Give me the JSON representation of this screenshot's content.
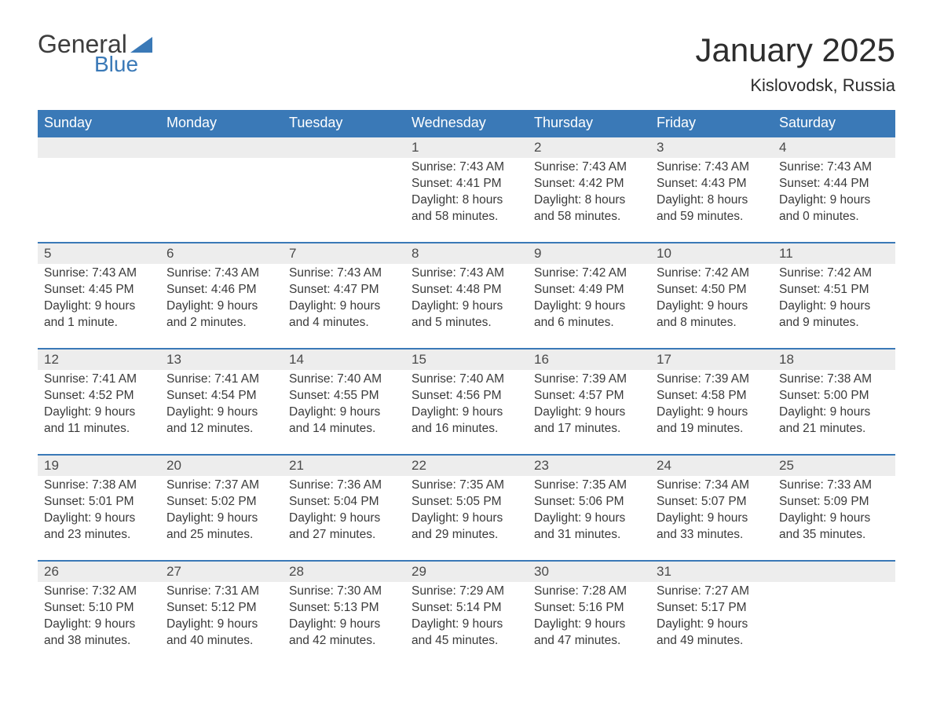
{
  "logo": {
    "general": "General",
    "blue": "Blue"
  },
  "header": {
    "title": "January 2025",
    "location": "Kislovodsk, Russia"
  },
  "colors": {
    "brand_blue": "#3a79b7",
    "header_bg": "#3a79b7",
    "header_text": "#ffffff",
    "daynum_bg": "#ededed",
    "daynum_border": "#3a79b7",
    "text": "#3a3a3a",
    "background": "#ffffff"
  },
  "days_of_week": [
    "Sunday",
    "Monday",
    "Tuesday",
    "Wednesday",
    "Thursday",
    "Friday",
    "Saturday"
  ],
  "weeks": [
    [
      null,
      null,
      null,
      {
        "n": "1",
        "sr": "Sunrise: 7:43 AM",
        "ss": "Sunset: 4:41 PM",
        "d1": "Daylight: 8 hours",
        "d2": "and 58 minutes."
      },
      {
        "n": "2",
        "sr": "Sunrise: 7:43 AM",
        "ss": "Sunset: 4:42 PM",
        "d1": "Daylight: 8 hours",
        "d2": "and 58 minutes."
      },
      {
        "n": "3",
        "sr": "Sunrise: 7:43 AM",
        "ss": "Sunset: 4:43 PM",
        "d1": "Daylight: 8 hours",
        "d2": "and 59 minutes."
      },
      {
        "n": "4",
        "sr": "Sunrise: 7:43 AM",
        "ss": "Sunset: 4:44 PM",
        "d1": "Daylight: 9 hours",
        "d2": "and 0 minutes."
      }
    ],
    [
      {
        "n": "5",
        "sr": "Sunrise: 7:43 AM",
        "ss": "Sunset: 4:45 PM",
        "d1": "Daylight: 9 hours",
        "d2": "and 1 minute."
      },
      {
        "n": "6",
        "sr": "Sunrise: 7:43 AM",
        "ss": "Sunset: 4:46 PM",
        "d1": "Daylight: 9 hours",
        "d2": "and 2 minutes."
      },
      {
        "n": "7",
        "sr": "Sunrise: 7:43 AM",
        "ss": "Sunset: 4:47 PM",
        "d1": "Daylight: 9 hours",
        "d2": "and 4 minutes."
      },
      {
        "n": "8",
        "sr": "Sunrise: 7:43 AM",
        "ss": "Sunset: 4:48 PM",
        "d1": "Daylight: 9 hours",
        "d2": "and 5 minutes."
      },
      {
        "n": "9",
        "sr": "Sunrise: 7:42 AM",
        "ss": "Sunset: 4:49 PM",
        "d1": "Daylight: 9 hours",
        "d2": "and 6 minutes."
      },
      {
        "n": "10",
        "sr": "Sunrise: 7:42 AM",
        "ss": "Sunset: 4:50 PM",
        "d1": "Daylight: 9 hours",
        "d2": "and 8 minutes."
      },
      {
        "n": "11",
        "sr": "Sunrise: 7:42 AM",
        "ss": "Sunset: 4:51 PM",
        "d1": "Daylight: 9 hours",
        "d2": "and 9 minutes."
      }
    ],
    [
      {
        "n": "12",
        "sr": "Sunrise: 7:41 AM",
        "ss": "Sunset: 4:52 PM",
        "d1": "Daylight: 9 hours",
        "d2": "and 11 minutes."
      },
      {
        "n": "13",
        "sr": "Sunrise: 7:41 AM",
        "ss": "Sunset: 4:54 PM",
        "d1": "Daylight: 9 hours",
        "d2": "and 12 minutes."
      },
      {
        "n": "14",
        "sr": "Sunrise: 7:40 AM",
        "ss": "Sunset: 4:55 PM",
        "d1": "Daylight: 9 hours",
        "d2": "and 14 minutes."
      },
      {
        "n": "15",
        "sr": "Sunrise: 7:40 AM",
        "ss": "Sunset: 4:56 PM",
        "d1": "Daylight: 9 hours",
        "d2": "and 16 minutes."
      },
      {
        "n": "16",
        "sr": "Sunrise: 7:39 AM",
        "ss": "Sunset: 4:57 PM",
        "d1": "Daylight: 9 hours",
        "d2": "and 17 minutes."
      },
      {
        "n": "17",
        "sr": "Sunrise: 7:39 AM",
        "ss": "Sunset: 4:58 PM",
        "d1": "Daylight: 9 hours",
        "d2": "and 19 minutes."
      },
      {
        "n": "18",
        "sr": "Sunrise: 7:38 AM",
        "ss": "Sunset: 5:00 PM",
        "d1": "Daylight: 9 hours",
        "d2": "and 21 minutes."
      }
    ],
    [
      {
        "n": "19",
        "sr": "Sunrise: 7:38 AM",
        "ss": "Sunset: 5:01 PM",
        "d1": "Daylight: 9 hours",
        "d2": "and 23 minutes."
      },
      {
        "n": "20",
        "sr": "Sunrise: 7:37 AM",
        "ss": "Sunset: 5:02 PM",
        "d1": "Daylight: 9 hours",
        "d2": "and 25 minutes."
      },
      {
        "n": "21",
        "sr": "Sunrise: 7:36 AM",
        "ss": "Sunset: 5:04 PM",
        "d1": "Daylight: 9 hours",
        "d2": "and 27 minutes."
      },
      {
        "n": "22",
        "sr": "Sunrise: 7:35 AM",
        "ss": "Sunset: 5:05 PM",
        "d1": "Daylight: 9 hours",
        "d2": "and 29 minutes."
      },
      {
        "n": "23",
        "sr": "Sunrise: 7:35 AM",
        "ss": "Sunset: 5:06 PM",
        "d1": "Daylight: 9 hours",
        "d2": "and 31 minutes."
      },
      {
        "n": "24",
        "sr": "Sunrise: 7:34 AM",
        "ss": "Sunset: 5:07 PM",
        "d1": "Daylight: 9 hours",
        "d2": "and 33 minutes."
      },
      {
        "n": "25",
        "sr": "Sunrise: 7:33 AM",
        "ss": "Sunset: 5:09 PM",
        "d1": "Daylight: 9 hours",
        "d2": "and 35 minutes."
      }
    ],
    [
      {
        "n": "26",
        "sr": "Sunrise: 7:32 AM",
        "ss": "Sunset: 5:10 PM",
        "d1": "Daylight: 9 hours",
        "d2": "and 38 minutes."
      },
      {
        "n": "27",
        "sr": "Sunrise: 7:31 AM",
        "ss": "Sunset: 5:12 PM",
        "d1": "Daylight: 9 hours",
        "d2": "and 40 minutes."
      },
      {
        "n": "28",
        "sr": "Sunrise: 7:30 AM",
        "ss": "Sunset: 5:13 PM",
        "d1": "Daylight: 9 hours",
        "d2": "and 42 minutes."
      },
      {
        "n": "29",
        "sr": "Sunrise: 7:29 AM",
        "ss": "Sunset: 5:14 PM",
        "d1": "Daylight: 9 hours",
        "d2": "and 45 minutes."
      },
      {
        "n": "30",
        "sr": "Sunrise: 7:28 AM",
        "ss": "Sunset: 5:16 PM",
        "d1": "Daylight: 9 hours",
        "d2": "and 47 minutes."
      },
      {
        "n": "31",
        "sr": "Sunrise: 7:27 AM",
        "ss": "Sunset: 5:17 PM",
        "d1": "Daylight: 9 hours",
        "d2": "and 49 minutes."
      },
      null
    ]
  ]
}
